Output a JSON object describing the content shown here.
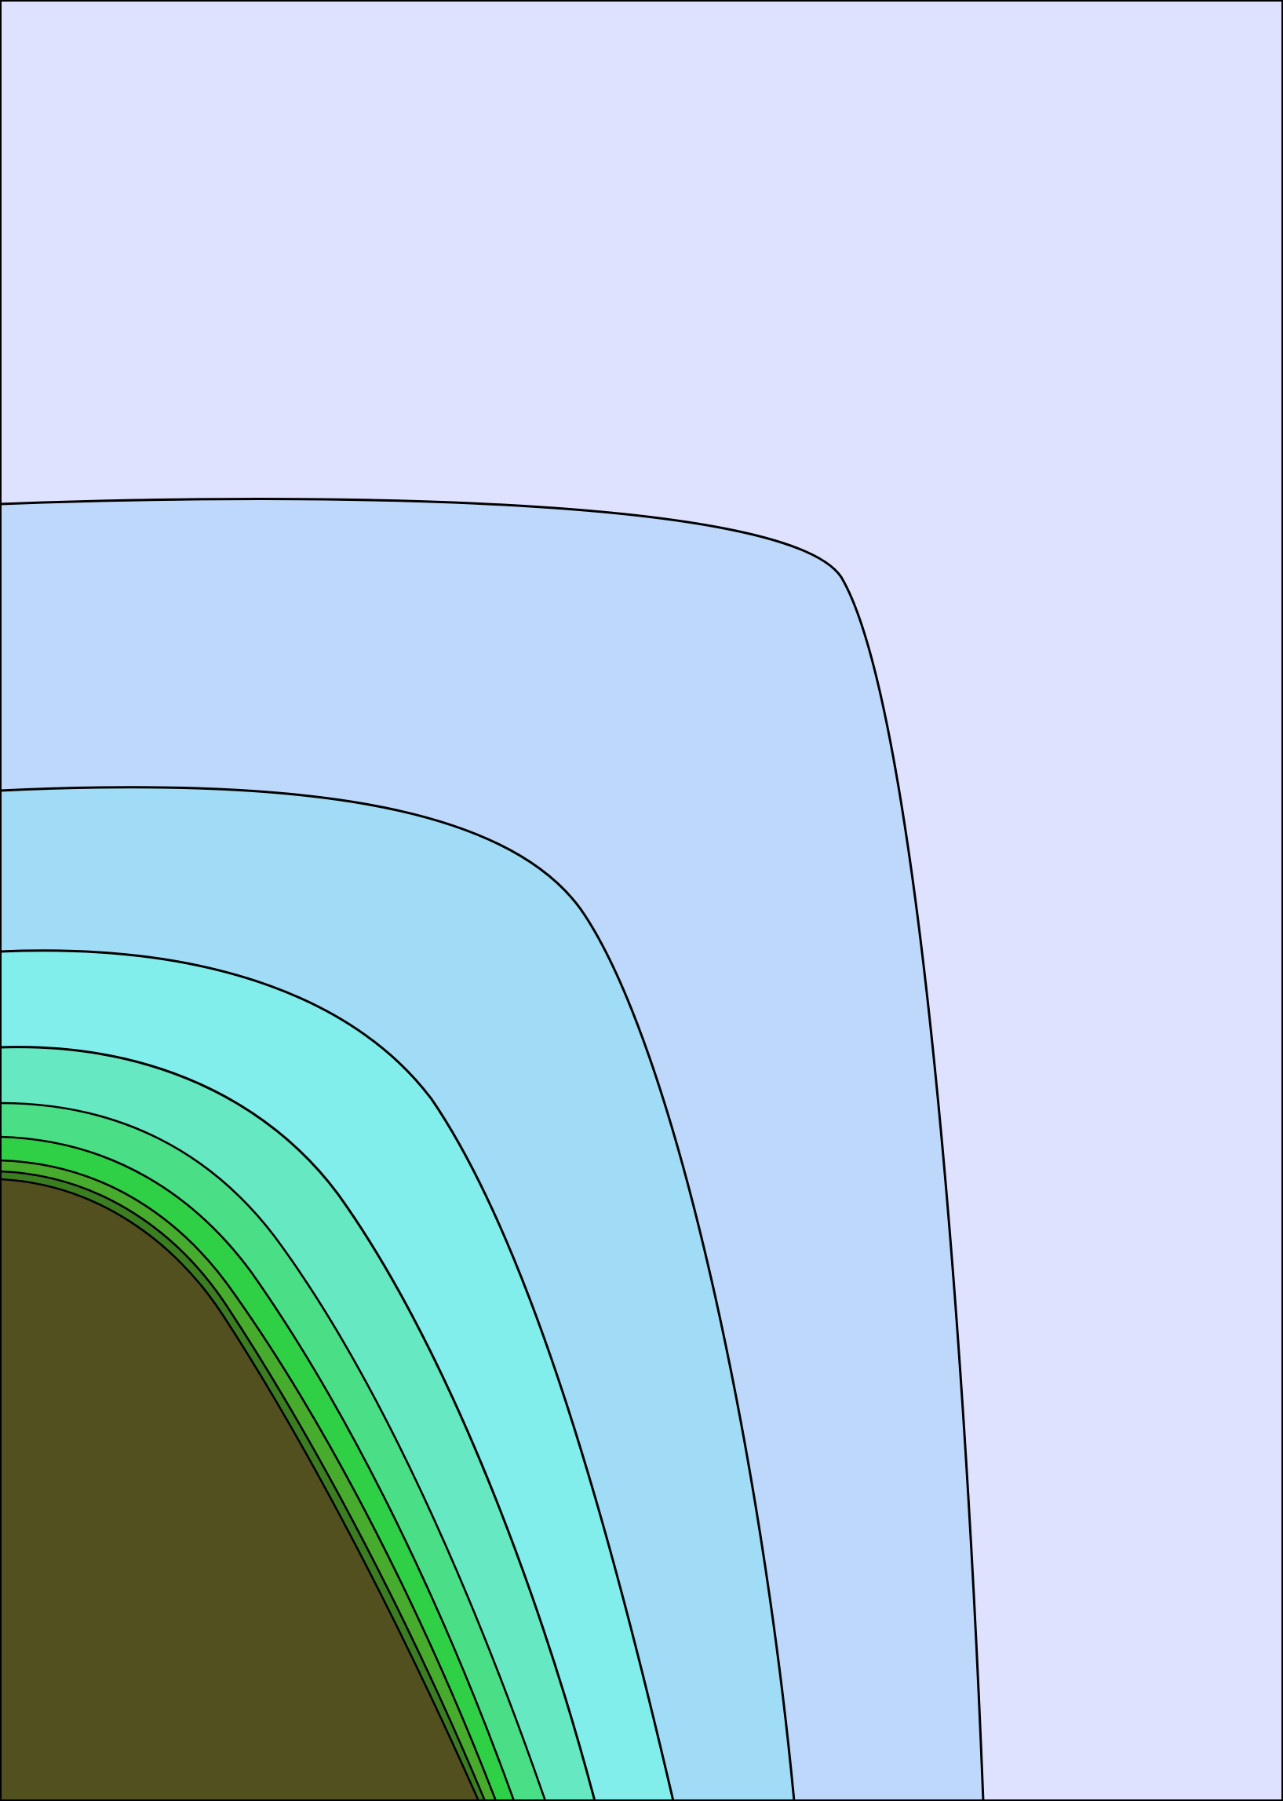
{
  "chart_data": {
    "type": "filled-contour",
    "title": "",
    "xlabel": "",
    "ylabel": "",
    "grid": false,
    "legend": "none",
    "levels": [
      {
        "name": "level-0",
        "color": "#dfe2ff"
      },
      {
        "name": "level-1",
        "color": "#bed8fb"
      },
      {
        "name": "level-2",
        "color": "#a0dcf5"
      },
      {
        "name": "level-3",
        "color": "#82eeec"
      },
      {
        "name": "level-4",
        "color": "#66e8c2"
      },
      {
        "name": "level-5",
        "color": "#4ade86"
      },
      {
        "name": "level-6",
        "color": "#30d046"
      },
      {
        "name": "level-7",
        "color": "#47ac2d"
      },
      {
        "name": "level-8",
        "color": "#3b7e22"
      },
      {
        "name": "level-9",
        "color": "#52501f"
      }
    ],
    "line_color": "#000000",
    "frame_color": "#000000"
  }
}
